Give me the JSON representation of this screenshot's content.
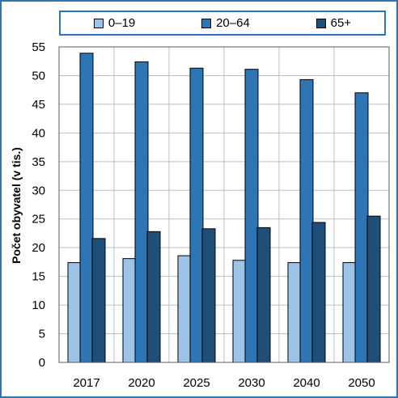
{
  "chart_data": {
    "type": "bar",
    "categories": [
      "2017",
      "2020",
      "2025",
      "2030",
      "2040",
      "2050"
    ],
    "series": [
      {
        "name": "0–19",
        "values": [
          17.4,
          18.1,
          18.6,
          17.8,
          17.4,
          17.4
        ],
        "color": "#9dc3e6"
      },
      {
        "name": "20–64",
        "values": [
          53.9,
          52.4,
          51.3,
          51.1,
          49.3,
          47.0
        ],
        "color": "#2e75b6"
      },
      {
        "name": "65+",
        "values": [
          21.6,
          22.8,
          23.3,
          23.5,
          24.4,
          25.5
        ],
        "color": "#1f4e79"
      }
    ],
    "ylabel": "Počet obyvatel (v tis.)",
    "ylim": [
      0,
      55
    ],
    "yticks": [
      "0",
      "5",
      "10",
      "15",
      "20",
      "25",
      "30",
      "35",
      "40",
      "45",
      "50",
      "55"
    ],
    "grid": true,
    "legend": "top"
  }
}
